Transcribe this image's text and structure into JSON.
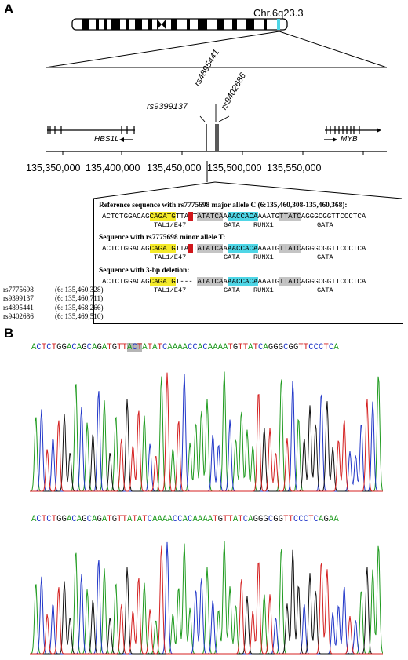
{
  "panels": {
    "a": "A",
    "b": "B"
  },
  "chromosome": {
    "label": "Chr.6q23.3"
  },
  "axis": {
    "ticks": [
      "135,350,000",
      "135,400,000",
      "135,450,000",
      "135,500,000",
      "135,550,000"
    ]
  },
  "genes": {
    "left": "HBS1L",
    "right": "MYB"
  },
  "snps": {
    "a": "rs9399137",
    "b": "rs4895441",
    "c": "rs9402686"
  },
  "sequences": {
    "title1": "Reference sequence with rs7775698 major allele C  (6:135,460,308-135,460,368):",
    "title2": "Sequence with rs7775698 minor allele T:",
    "title3": "Sequence with 3-bp deletion:",
    "seq1": [
      {
        "t": "ACTCTGGACAG",
        "k": ""
      },
      {
        "t": "CAGATG",
        "k": "y"
      },
      {
        "t": "TTA",
        "k": ""
      },
      {
        "t": "C",
        "k": "r"
      },
      {
        "t": "T",
        "k": ""
      },
      {
        "t": "ATATCA",
        "k": "g"
      },
      {
        "t": "A",
        "k": ""
      },
      {
        "t": "AACCACA",
        "k": "c"
      },
      {
        "t": "AAATG",
        "k": ""
      },
      {
        "t": "TTATC",
        "k": "g"
      },
      {
        "t": "AGGGCGGTTCCCTCA",
        "k": ""
      }
    ],
    "seq2": [
      {
        "t": "ACTCTGGACAG",
        "k": ""
      },
      {
        "t": "CAGATG",
        "k": "y"
      },
      {
        "t": "TTA",
        "k": ""
      },
      {
        "t": "T",
        "k": "r"
      },
      {
        "t": "T",
        "k": ""
      },
      {
        "t": "ATATCA",
        "k": "g"
      },
      {
        "t": "A",
        "k": ""
      },
      {
        "t": "AACCACA",
        "k": "c"
      },
      {
        "t": "AAATG",
        "k": ""
      },
      {
        "t": "TTATC",
        "k": "g"
      },
      {
        "t": "AGGGCGGTTCCCTCA",
        "k": ""
      }
    ],
    "seq3": [
      {
        "t": "ACTCTGGACAG",
        "k": ""
      },
      {
        "t": "CAGATG",
        "k": "y"
      },
      {
        "t": "T---T",
        "k": ""
      },
      {
        "t": "ATATCA",
        "k": "g"
      },
      {
        "t": "A",
        "k": ""
      },
      {
        "t": "AACCACA",
        "k": "c"
      },
      {
        "t": "AAATG",
        "k": ""
      },
      {
        "t": "TTATC",
        "k": "g"
      },
      {
        "t": "AGGGCGGTTCCCTCA",
        "k": ""
      }
    ],
    "motifs": {
      "tal": "TAL1/E47",
      "gata": "GATA",
      "runx": "RUNX1",
      "gata2": "GATA"
    }
  },
  "snp_table": [
    {
      "id": "rs7775698",
      "pos": "(6: 135,460,328)"
    },
    {
      "id": "rs9399137",
      "pos": "(6: 135,460,711)"
    },
    {
      "id": "rs4895441",
      "pos": "(6: 135,468,266)"
    },
    {
      "id": "rs9402686",
      "pos": "(6: 135,469,510)"
    }
  ],
  "trace1": {
    "sequence": "ACTCTGGACAGCAGATGTTACTATATCAAAACCACAAAATGTTATCAGGGCGGTTCCCTCA",
    "highlight": [
      19,
      22
    ]
  },
  "trace2": {
    "sequence": "ACTCTGGACAGCAGATGTTATATCAAAACCACAAAATGTTATCAGGGCGGTTCCCTCAGAA",
    "highlight": []
  },
  "colors": {
    "A": "#1e9a1e",
    "C": "#1f35c8",
    "G": "#111111",
    "T": "#d42020"
  }
}
